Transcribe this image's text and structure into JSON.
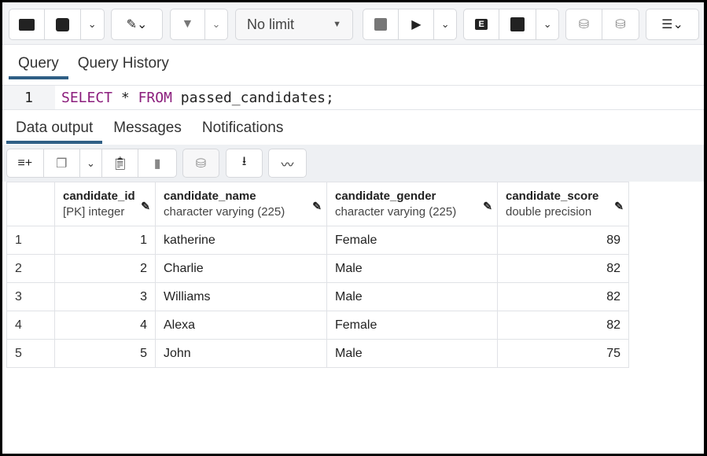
{
  "toolbar": {
    "limit_label": "No limit"
  },
  "query_tabs": [
    "Query",
    "Query History"
  ],
  "editor": {
    "line_number": "1",
    "kw1": "SELECT",
    "star": "*",
    "kw2": "FROM",
    "rest": "passed_candidates;"
  },
  "output_tabs": [
    "Data output",
    "Messages",
    "Notifications"
  ],
  "table": {
    "columns": [
      {
        "name": "candidate_id",
        "type": "[PK] integer"
      },
      {
        "name": "candidate_name",
        "type": "character varying (225)"
      },
      {
        "name": "candidate_gender",
        "type": "character varying (225)"
      },
      {
        "name": "candidate_score",
        "type": "double precision"
      }
    ],
    "rows": [
      [
        "1",
        "1",
        "katherine",
        "Female",
        "89"
      ],
      [
        "2",
        "2",
        "Charlie",
        "Male",
        "82"
      ],
      [
        "3",
        "3",
        "Williams",
        "Male",
        "82"
      ],
      [
        "4",
        "4",
        "Alexa",
        "Female",
        "82"
      ],
      [
        "5",
        "5",
        "John",
        "Male",
        "75"
      ]
    ]
  },
  "colors": {
    "keyword": "#8b1d7c",
    "tab_underline": "#2f5f85"
  }
}
